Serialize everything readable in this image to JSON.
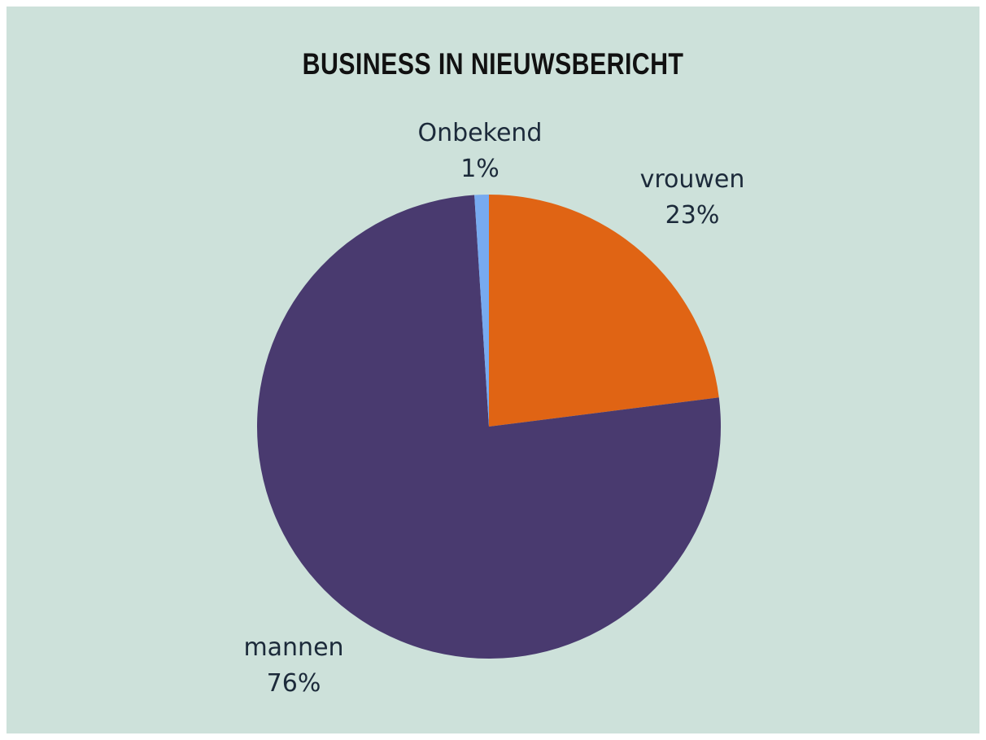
{
  "chart_data": {
    "type": "pie",
    "title": "BUSINESS IN NIEUWSBERICHT",
    "categories": [
      "vrouwen",
      "mannen",
      "Onbekend"
    ],
    "values": [
      23,
      76,
      1
    ],
    "value_labels": [
      "23%",
      "76%",
      "1%"
    ],
    "colors": [
      "#e06414",
      "#493a6f",
      "#77aaf0"
    ],
    "start_angle_deg": 0,
    "direction": "clockwise",
    "legend": "none"
  },
  "colors": {
    "background": "#cde1da",
    "label_text": "#1c2a3a",
    "title_text": "#111111"
  }
}
